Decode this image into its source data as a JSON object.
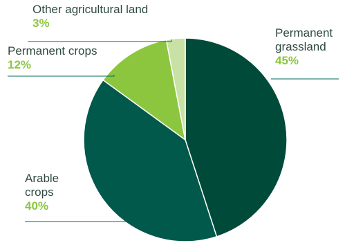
{
  "chart_data": {
    "type": "pie",
    "title": "",
    "start": "12 o'clock, clockwise",
    "slices": [
      {
        "label": "Permanent grassland",
        "label_lines": [
          "Permanent",
          "grassland"
        ],
        "percent_text": "45%",
        "value": 45,
        "color": "#004a3a"
      },
      {
        "label": "Arable crops",
        "label_lines": [
          "Arable",
          "crops"
        ],
        "percent_text": "40%",
        "value": 40,
        "color": "#00594a"
      },
      {
        "label": "Permanent crops",
        "label_lines": [
          "Permanent crops"
        ],
        "percent_text": "12%",
        "value": 12,
        "color": "#8cc63f"
      },
      {
        "label": "Other agricultural land",
        "label_lines": [
          "Other agricultural land"
        ],
        "percent_text": "3%",
        "value": 3,
        "color": "#c8e2a5"
      }
    ],
    "label_color": "#2e4a3e",
    "percent_color": "#8cc63f",
    "leader_color": "#006b5a"
  }
}
